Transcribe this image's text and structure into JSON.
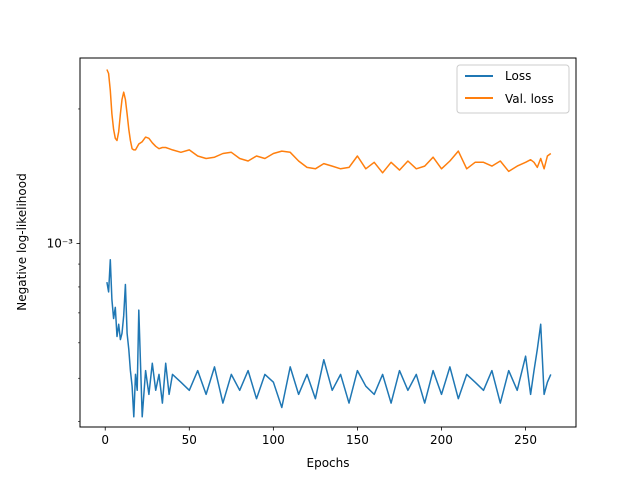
{
  "chart_data": {
    "type": "line",
    "title": "",
    "xlabel": "Epochs",
    "ylabel": "Negative log-likelihood",
    "x_scale": "linear",
    "y_scale": "log",
    "xlim": [
      -15,
      280
    ],
    "ylim": [
      0.000389,
      0.0026
    ],
    "x_ticks": [
      0,
      50,
      100,
      150,
      200,
      250
    ],
    "x_tick_labels": [
      "0",
      "50",
      "100",
      "150",
      "200",
      "250"
    ],
    "y_major_ticks": [
      0.001
    ],
    "y_major_tick_labels": [
      "10⁻³"
    ],
    "y_minor_ticks": [
      0.0004,
      0.0005,
      0.0006,
      0.0007,
      0.0008,
      0.0009,
      0.002
    ],
    "grid": false,
    "legend_position": "top-right",
    "series": [
      {
        "name": "Loss",
        "color": "#1f77b4",
        "x": [
          1,
          2,
          3,
          4,
          5,
          6,
          7,
          8,
          9,
          10,
          11,
          12,
          13,
          14,
          15,
          16,
          17,
          18,
          19,
          20,
          22,
          24,
          26,
          28,
          30,
          32,
          34,
          36,
          38,
          40,
          45,
          50,
          55,
          60,
          65,
          70,
          75,
          80,
          85,
          90,
          95,
          100,
          105,
          110,
          115,
          120,
          125,
          130,
          135,
          140,
          145,
          150,
          155,
          160,
          165,
          170,
          175,
          180,
          185,
          190,
          195,
          200,
          205,
          210,
          215,
          220,
          225,
          230,
          235,
          240,
          245,
          250,
          253,
          255,
          257,
          259,
          261,
          263,
          265
        ],
        "y": [
          0.00082,
          0.00078,
          0.00092,
          0.00075,
          0.00068,
          0.00072,
          0.00062,
          0.00066,
          0.00061,
          0.00063,
          0.00069,
          0.00081,
          0.00063,
          0.00058,
          0.00052,
          0.00048,
          0.00041,
          0.00051,
          0.00047,
          0.00071,
          0.00041,
          0.00052,
          0.00046,
          0.00054,
          0.00047,
          0.00051,
          0.00044,
          0.00054,
          0.00046,
          0.00051,
          0.00049,
          0.00047,
          0.00052,
          0.00046,
          0.00053,
          0.00044,
          0.00051,
          0.00047,
          0.00052,
          0.00045,
          0.00051,
          0.00049,
          0.00043,
          0.00053,
          0.00046,
          0.00051,
          0.00045,
          0.00055,
          0.00047,
          0.00051,
          0.00044,
          0.00052,
          0.00048,
          0.00046,
          0.00051,
          0.00044,
          0.00052,
          0.00047,
          0.00051,
          0.00044,
          0.00052,
          0.00046,
          0.00053,
          0.00045,
          0.00051,
          0.00049,
          0.00047,
          0.00052,
          0.00044,
          0.00052,
          0.00047,
          0.00056,
          0.00046,
          0.00052,
          0.00058,
          0.00066,
          0.00046,
          0.00049,
          0.00051
        ]
      },
      {
        "name": "Val. loss",
        "color": "#ff7f0e",
        "x": [
          1,
          2,
          3,
          4,
          5,
          6,
          7,
          8,
          9,
          10,
          11,
          12,
          13,
          14,
          15,
          16,
          17,
          18,
          20,
          22,
          24,
          26,
          28,
          30,
          32,
          34,
          36,
          38,
          40,
          45,
          50,
          55,
          60,
          65,
          70,
          75,
          80,
          85,
          90,
          95,
          100,
          105,
          110,
          115,
          120,
          125,
          130,
          135,
          140,
          145,
          150,
          155,
          160,
          165,
          170,
          175,
          180,
          185,
          190,
          195,
          200,
          205,
          210,
          215,
          220,
          225,
          230,
          235,
          240,
          245,
          250,
          253,
          255,
          257,
          259,
          261,
          263,
          265
        ],
        "y": [
          0.00245,
          0.0024,
          0.0022,
          0.00195,
          0.0018,
          0.00172,
          0.0017,
          0.00178,
          0.00195,
          0.0021,
          0.00218,
          0.0021,
          0.00195,
          0.0018,
          0.0017,
          0.00163,
          0.00162,
          0.00162,
          0.00167,
          0.00169,
          0.00173,
          0.00172,
          0.00168,
          0.00165,
          0.00163,
          0.00164,
          0.00164,
          0.00163,
          0.00162,
          0.0016,
          0.00162,
          0.00157,
          0.00155,
          0.00156,
          0.00159,
          0.0016,
          0.00155,
          0.00153,
          0.00157,
          0.00155,
          0.00159,
          0.00161,
          0.0016,
          0.00153,
          0.00148,
          0.00147,
          0.00151,
          0.00149,
          0.00147,
          0.00148,
          0.00157,
          0.00147,
          0.00152,
          0.00144,
          0.00152,
          0.00146,
          0.00153,
          0.00147,
          0.00149,
          0.00156,
          0.00147,
          0.00153,
          0.00161,
          0.00147,
          0.00152,
          0.00152,
          0.00149,
          0.00153,
          0.00145,
          0.00149,
          0.00152,
          0.00154,
          0.00152,
          0.00148,
          0.00155,
          0.00147,
          0.00157,
          0.00159
        ]
      }
    ]
  }
}
